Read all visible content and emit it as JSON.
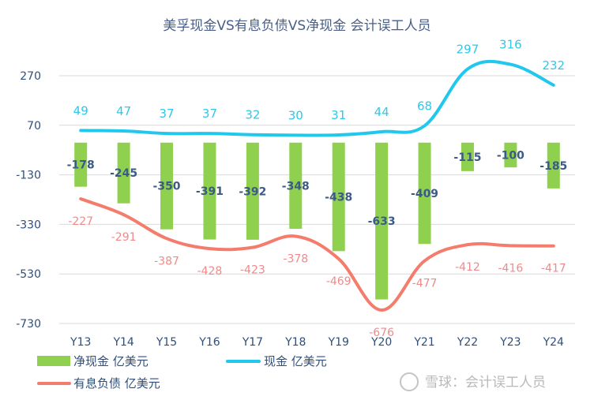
{
  "chart_data": {
    "type": "bar",
    "title": "美孚现金VS有息负债VS净现金 会计误工人员",
    "categories": [
      "Y13",
      "Y14",
      "Y15",
      "Y16",
      "Y17",
      "Y18",
      "Y19",
      "Y20",
      "Y21",
      "Y22",
      "Y23",
      "Y24"
    ],
    "yticks": [
      270,
      70,
      -130,
      -330,
      -530,
      -730
    ],
    "ylim": [
      -730,
      330
    ],
    "grid": true,
    "legend_position": "bottom",
    "series": [
      {
        "name": "净现金 亿美元",
        "kind": "bar",
        "color": "#8fd14f",
        "values": [
          -178,
          -245,
          -350,
          -391,
          -392,
          -348,
          -438,
          -633,
          -409,
          -115,
          -100,
          -185
        ]
      },
      {
        "name": "现金 亿美元",
        "kind": "line",
        "color": "#22c7ee",
        "values": [
          49,
          47,
          37,
          37,
          32,
          30,
          31,
          44,
          68,
          297,
          316,
          232
        ]
      },
      {
        "name": "有息负债 亿美元",
        "kind": "line",
        "color": "#f47c6c",
        "values": [
          -227,
          -291,
          -387,
          -428,
          -423,
          -378,
          -469,
          -676,
          -477,
          -412,
          -416,
          -417
        ]
      }
    ]
  },
  "watermark": "雪球：会计误工人员"
}
